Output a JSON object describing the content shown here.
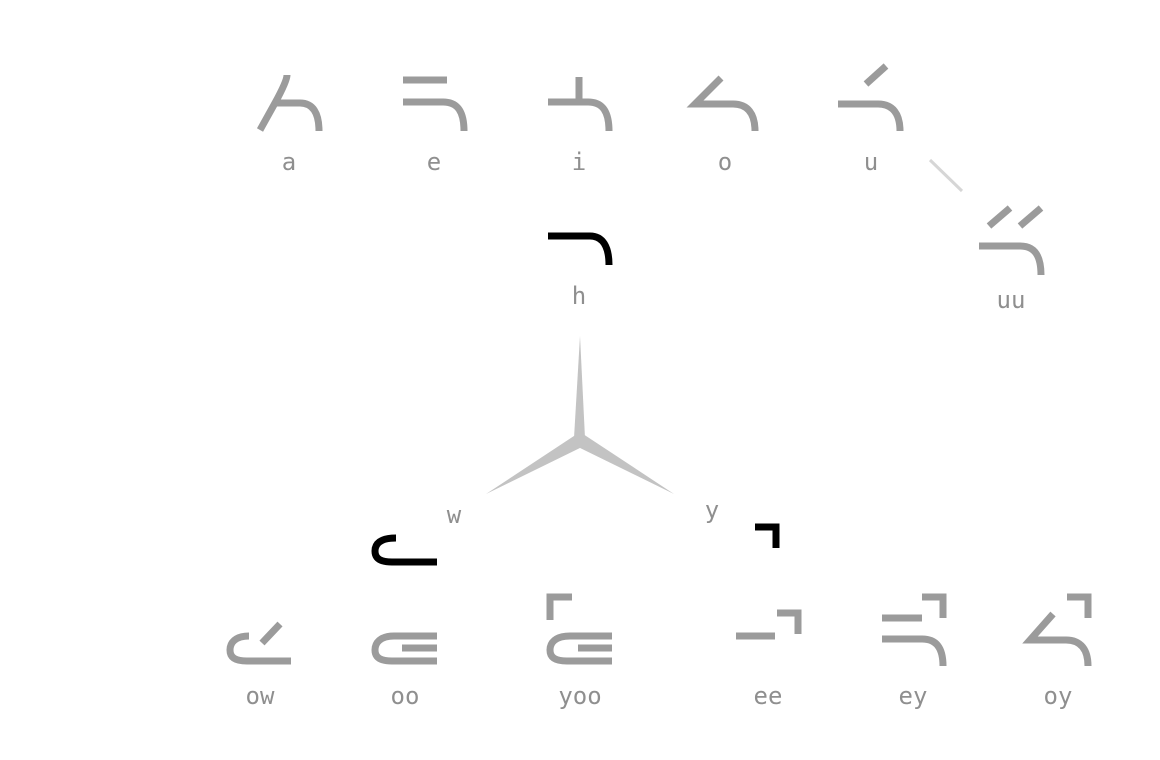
{
  "colors": {
    "glyph_dim": "#9b9b9b",
    "glyph_active": "#000000",
    "label": "#8f8f8f",
    "spoke": "#c3c3c3",
    "connector": "#d6d6d6"
  },
  "vowels_top": [
    {
      "id": "a",
      "label": "a"
    },
    {
      "id": "e",
      "label": "e"
    },
    {
      "id": "i",
      "label": "i"
    },
    {
      "id": "o",
      "label": "o"
    },
    {
      "id": "u",
      "label": "u"
    }
  ],
  "uu": {
    "label": "uu"
  },
  "h": {
    "label": "h"
  },
  "spoke_labels": {
    "w": "w",
    "y": "y"
  },
  "vowels_bottom": [
    {
      "id": "ow",
      "label": "ow"
    },
    {
      "id": "oo",
      "label": "oo"
    },
    {
      "id": "yoo",
      "label": "yoo"
    },
    {
      "id": "ee",
      "label": "ee"
    },
    {
      "id": "ey",
      "label": "ey"
    },
    {
      "id": "oy",
      "label": "oy"
    }
  ]
}
